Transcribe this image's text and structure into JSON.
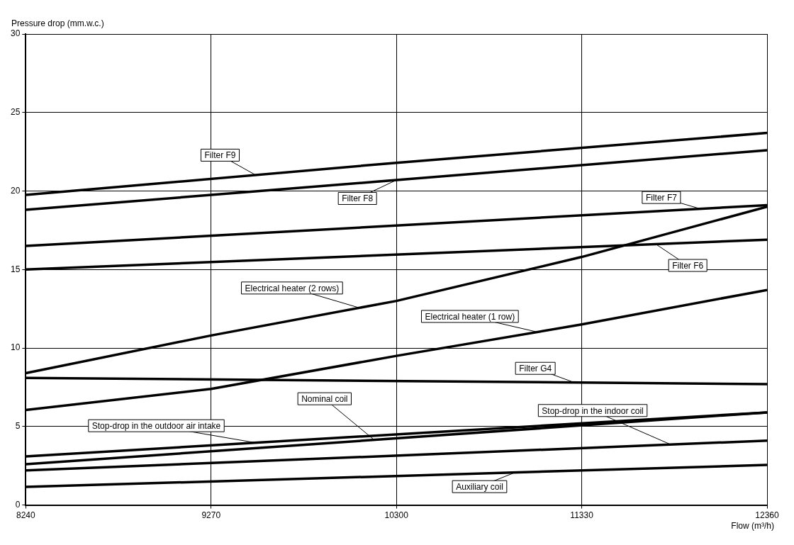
{
  "chart_data": {
    "type": "line",
    "xlabel": "Flow (m³/h)",
    "ylabel": "Pressure drop (mm.w.c.)",
    "xlim": [
      8240,
      12360
    ],
    "ylim": [
      0,
      30
    ],
    "xticks": [
      8240,
      9270,
      10300,
      11330,
      12360
    ],
    "yticks": [
      0,
      5,
      10,
      15,
      20,
      25,
      30
    ],
    "grid": true,
    "legend": false,
    "marker": "none",
    "line_style": "solid",
    "series": [
      {
        "name": "Filter F9",
        "color": "#000000",
        "x": [
          8240,
          10300,
          12360
        ],
        "values": [
          19.75,
          21.8,
          23.7
        ]
      },
      {
        "name": "Filter F8",
        "color": "#000000",
        "x": [
          8240,
          12360
        ],
        "values": [
          18.8,
          22.6
        ]
      },
      {
        "name": "Filter F7",
        "color": "#000000",
        "x": [
          8240,
          12360
        ],
        "values": [
          16.5,
          19.1
        ]
      },
      {
        "name": "Filter F6",
        "color": "#000000",
        "x": [
          8240,
          12360
        ],
        "values": [
          15,
          16.9
        ]
      },
      {
        "name": "Electrical heater (2 rows)",
        "color": "#000000",
        "x": [
          8240,
          9270,
          10300,
          11330,
          12360
        ],
        "values": [
          8.4,
          10.8,
          13,
          15.8,
          19
        ]
      },
      {
        "name": "Electrical heater (1 row)",
        "color": "#000000",
        "x": [
          8240,
          9270,
          10300,
          11330,
          12360
        ],
        "values": [
          6.05,
          7.4,
          9.5,
          11.5,
          13.7
        ]
      },
      {
        "name": "Filter G4",
        "color": "#000000",
        "x": [
          8240,
          12360
        ],
        "values": [
          8.1,
          7.7
        ]
      },
      {
        "name": "Stop-drop in the outdoor air intake",
        "color": "#000000",
        "x": [
          8240,
          12360
        ],
        "values": [
          3.1,
          5.9
        ]
      },
      {
        "name": "Nominal coil",
        "color": "#000000",
        "x": [
          8240,
          12360
        ],
        "values": [
          2.6,
          5.9
        ]
      },
      {
        "name": "Stop-drop in the indoor coil",
        "color": "#000000",
        "x": [
          8240,
          12360
        ],
        "values": [
          2.2,
          4.1
        ]
      },
      {
        "name": "Auxiliary coil",
        "color": "#000000",
        "x": [
          8240,
          12360
        ],
        "values": [
          1.15,
          2.55
        ]
      }
    ]
  }
}
